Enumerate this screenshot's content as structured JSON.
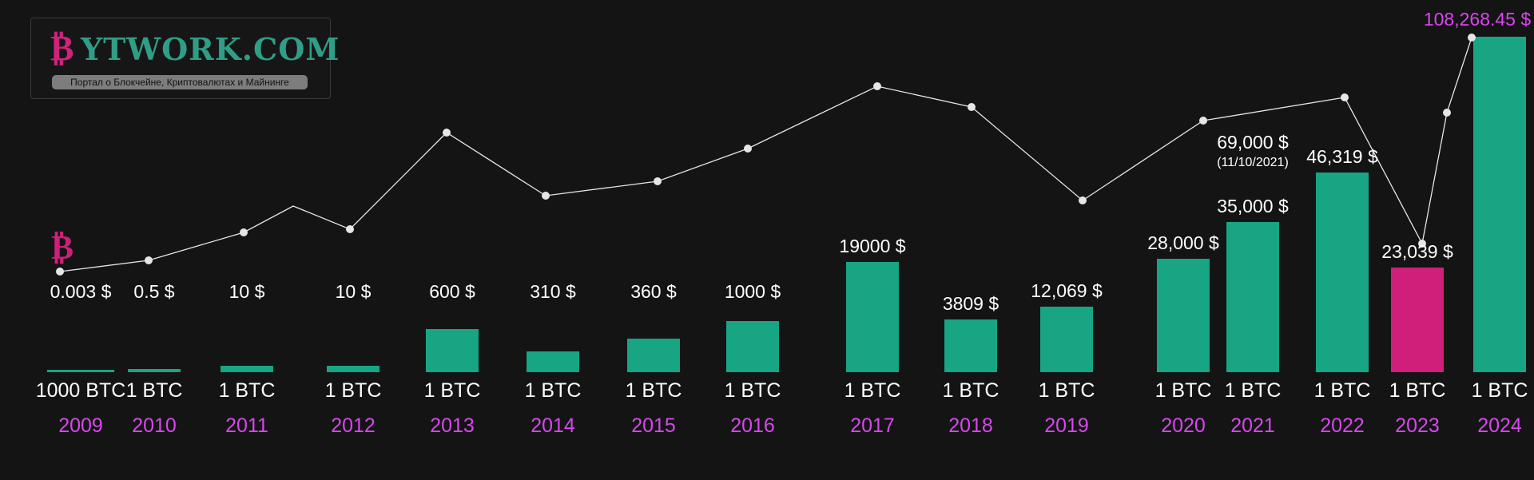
{
  "logo": {
    "symbol": "₿",
    "name": "YTWORK.COM",
    "tagline": "Портал о Блокчейне, Криптовалютах и Майнинге"
  },
  "colors": {
    "background": "#141414",
    "bar": "#17a584",
    "bar_highlight": "#cf1f7a",
    "year": "#d946ef",
    "line": "#e6e6e6",
    "text": "#ffffff"
  },
  "chart_data": {
    "type": "bar",
    "categories": [
      "2009",
      "2010",
      "2011",
      "2012",
      "2013",
      "2014",
      "2015",
      "2016",
      "2017",
      "2018",
      "2019",
      "2020",
      "2021",
      "2022",
      "2023",
      "2024"
    ],
    "quantity_labels": [
      "1000 BTC",
      "1 BTC",
      "1 BTC",
      "1 BTC",
      "1 BTC",
      "1 BTC",
      "1 BTC",
      "1 BTC",
      "1 BTC",
      "1 BTC",
      "1 BTC",
      "1 BTC",
      "1 BTC",
      "1 BTC",
      "1 BTC",
      "1 BTC"
    ],
    "price_labels": [
      "0.003 $",
      "0.5 $",
      "10 $",
      "10 $",
      "600 $",
      "310 $",
      "360 $",
      "1000 $",
      "19000 $",
      "3809 $",
      "12,069 $",
      "28,000 $",
      "35,000 $",
      "46,319 $",
      "23,039 $",
      "108,268.45 $"
    ],
    "values": [
      3,
      0.5,
      10,
      10,
      600,
      310,
      360,
      1000,
      19000,
      3809,
      12069,
      28000,
      35000,
      46319,
      23039,
      108268.45
    ],
    "highlight_index": 14,
    "annotation": {
      "index": 12,
      "price": "69,000 $",
      "date": "(11/10/2021)"
    },
    "trend_line": "decorative white polyline with point markers above the bars",
    "icon": "bitcoin-icon"
  }
}
